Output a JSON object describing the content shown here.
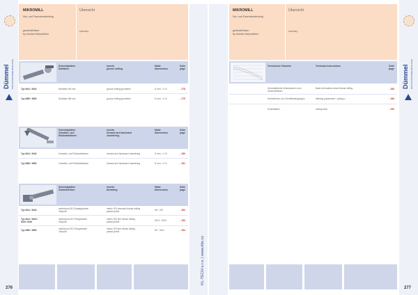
{
  "left": {
    "title": "MIKROMILL",
    "subtitle_1": "Nut- und Fasenbearbeitung",
    "subtitle_2": "grooving and chamfering",
    "subtitle_3": "gewindefräsen",
    "subtitle_4": "by circular interpolation",
    "overview_de": "Übersicht",
    "overview_en": "summary",
    "page_number": "276",
    "brand": "Dümmel",
    "brand_sub": "PRÄZISIONSWERKZEUGE",
    "section1": {
      "col1": "Schneidplatten\nNutfräser",
      "col2": "inserts\ngroove milling",
      "col3": "Maße\ndimensions",
      "col4": "Seite\npage",
      "rows": [
        {
          "type": "Typ MA4 / MA8",
          "de": "Nutfräser Ø4 mm",
          "en": "groove milling geometrie",
          "dim": "D mm : 4 / 8",
          "page": "→ 278"
        },
        {
          "type": "Typ MB8 / MB8",
          "de": "Nutfräser Ø8 mm",
          "en": "groove milling geometrie",
          "dim": "D mm : 4 / 8",
          "page": "→ 279"
        }
      ]
    },
    "section2": {
      "col1": "Schneidplatten\nVorwärts- und\nRückwärtsfasen",
      "col2": "inserts\nforward and backward\nchamfering",
      "col3": "Maße\ndimensions",
      "col4": "Seite\npage",
      "rows": [
        {
          "type": "Typ MA4 / MA8",
          "de": "Vorwärts- und Rückwärtsfasen",
          "en": "forward and backward chamfering",
          "dim": "D mm : 4 / 8",
          "page": "→ 280"
        },
        {
          "type": "Typ MB8 / MB8",
          "de": "Vorwärts- und Rückwärtsfasen",
          "en": "forward and backward chamfering",
          "dim": "D mm : 4 / 8",
          "page": "→ 281"
        }
      ]
    },
    "section3": {
      "col1": "Schneidplatten\nGewindefräser",
      "col2": "inserts\nthreading",
      "col3": "Maße\ndimensions",
      "col4": "Seite\npage",
      "rows": [
        {
          "type": "Typ MA4 / MA8",
          "de": "metrisches ISO-Regelgewinde\nTeilprofil",
          "en": "metric ISO standard thread milling\npartial profile",
          "dim": "M2 - M3",
          "page": "→ 282"
        },
        {
          "type": "Typ MA4 / MA8 /\nMA8 / MA8",
          "de": "metrisches ISO-Feingewinde\nTeilprofil",
          "en": "metric ISO fine thread milling\npartial profile",
          "dim": "M2.5 - M3.5",
          "page": "→ 283"
        },
        {
          "type": "Typ MB8 / MB8",
          "de": "metrisches ISO-Feingewinde\nTeilprofil",
          "en": "metric ISO fine thread milling\npartial profile",
          "dim": "M7 - M10",
          "page": "→ 284"
        }
      ]
    }
  },
  "right": {
    "title": "MIKROMILL",
    "subtitle_1": "Nut- und Fasenbearbeitung",
    "subtitle_2": "grooving and chamfering",
    "subtitle_3": "gewindefräsen",
    "subtitle_4": "by circular interpolation",
    "overview_de": "Übersicht",
    "overview_en": "summary",
    "page_number": "277",
    "brand": "Dümmel",
    "brand_sub": "PRÄZISIONSWERKZEUGE",
    "section1": {
      "col1": "Technische Hinweise",
      "col2": "Technical instructions",
      "col4": "Seite\npage",
      "rows": [
        {
          "de": "Grundsätzliche Informationen zum\nGewindefräsen",
          "en": "Basic information about thread milling",
          "page": "→ 286"
        },
        {
          "de": "Herbeiführen von Schnittbedingungen",
          "en": "defining parameters / cutting c.",
          "page": "→ 288"
        },
        {
          "de": "Schnittdaten",
          "en": "cutting data",
          "page": "→ 290"
        }
      ]
    }
  },
  "vertical_text": "KL-TECH s.r.o. | www.kltx.cz"
}
